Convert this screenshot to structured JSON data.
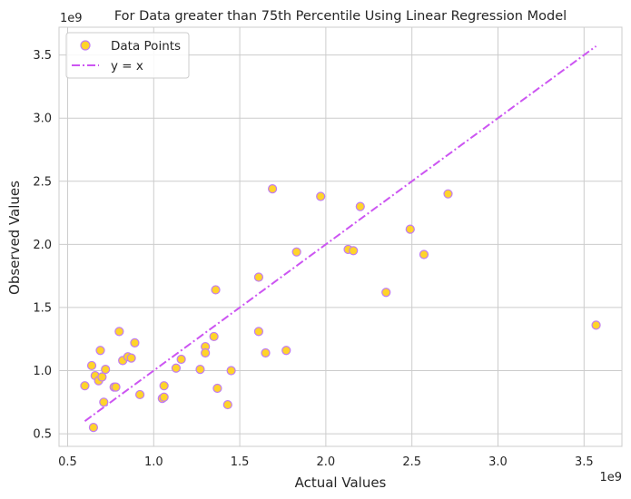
{
  "chart_data": {
    "type": "scatter",
    "title": "For Data  greater than 75th Percentile Using Linear Regression Model",
    "xlabel": "Actual Values",
    "ylabel": "Observed Values",
    "x_offset_label": "1e9",
    "y_offset_label": "1e9",
    "xlim": [
      0.45,
      3.72
    ],
    "ylim": [
      0.4,
      3.72
    ],
    "xticks": [
      0.5,
      1.0,
      1.5,
      2.0,
      2.5,
      3.0,
      3.5
    ],
    "xtick_labels": [
      "0.5",
      "1.0",
      "1.5",
      "2.0",
      "2.5",
      "3.0",
      "3.5"
    ],
    "yticks": [
      0.5,
      1.0,
      1.5,
      2.0,
      2.5,
      3.0,
      3.5
    ],
    "ytick_labels": [
      "0.5",
      "1.0",
      "1.5",
      "2.0",
      "2.5",
      "3.0",
      "3.5"
    ],
    "grid": true,
    "legend_position": "upper-left",
    "colors": {
      "marker_fill": "#FFD42A",
      "marker_edge": "#C07CF2",
      "line": "#CC55F2",
      "grid": "#CCCCCC",
      "spine": "#CCCCCC"
    },
    "series": [
      {
        "name": "Data Points",
        "kind": "scatter",
        "points": [
          [
            0.6,
            0.88
          ],
          [
            0.64,
            1.04
          ],
          [
            0.65,
            0.55
          ],
          [
            0.66,
            0.96
          ],
          [
            0.68,
            0.92
          ],
          [
            0.69,
            1.16
          ],
          [
            0.7,
            0.95
          ],
          [
            0.71,
            0.75
          ],
          [
            0.72,
            1.01
          ],
          [
            0.77,
            0.87
          ],
          [
            0.78,
            0.87
          ],
          [
            0.8,
            1.31
          ],
          [
            0.82,
            1.08
          ],
          [
            0.85,
            1.11
          ],
          [
            0.87,
            1.1
          ],
          [
            0.89,
            1.22
          ],
          [
            0.92,
            0.81
          ],
          [
            1.05,
            0.78
          ],
          [
            1.06,
            0.79
          ],
          [
            1.06,
            0.88
          ],
          [
            1.13,
            1.02
          ],
          [
            1.16,
            1.09
          ],
          [
            1.27,
            1.01
          ],
          [
            1.3,
            1.19
          ],
          [
            1.3,
            1.14
          ],
          [
            1.35,
            1.27
          ],
          [
            1.36,
            1.64
          ],
          [
            1.37,
            0.86
          ],
          [
            1.43,
            0.73
          ],
          [
            1.45,
            1.0
          ],
          [
            1.61,
            1.74
          ],
          [
            1.61,
            1.31
          ],
          [
            1.65,
            1.14
          ],
          [
            1.69,
            2.44
          ],
          [
            1.77,
            1.16
          ],
          [
            1.83,
            1.94
          ],
          [
            1.97,
            2.38
          ],
          [
            2.13,
            1.96
          ],
          [
            2.16,
            1.95
          ],
          [
            2.2,
            2.3
          ],
          [
            2.35,
            1.62
          ],
          [
            2.49,
            2.12
          ],
          [
            2.57,
            1.92
          ],
          [
            2.71,
            2.4
          ],
          [
            3.57,
            1.36
          ]
        ]
      },
      {
        "name": "y = x",
        "kind": "line",
        "x": [
          0.6,
          3.57
        ],
        "y": [
          0.6,
          3.57
        ],
        "style": "dashdot"
      }
    ]
  }
}
